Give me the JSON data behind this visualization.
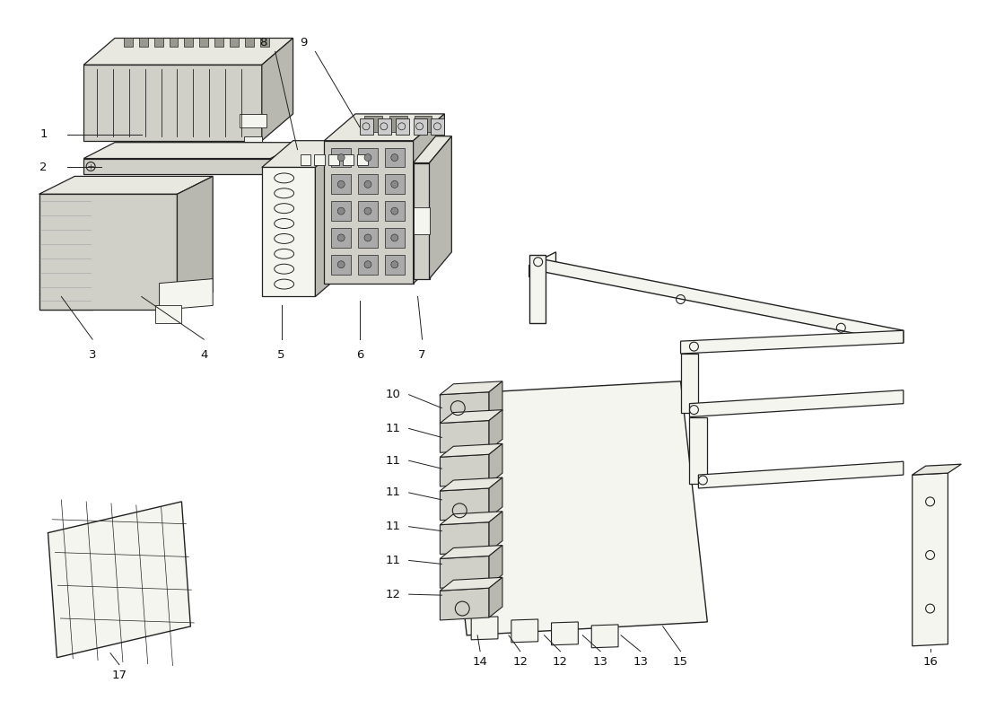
{
  "background_color": "#ffffff",
  "line_color": "#222222",
  "text_color": "#111111",
  "fig_width": 11.0,
  "fig_height": 8.0,
  "lw": 0.9,
  "fc_light": "#e8e8e0",
  "fc_mid": "#d0d0c8",
  "fc_dark": "#b8b8b0",
  "fc_white": "#f5f5f0"
}
